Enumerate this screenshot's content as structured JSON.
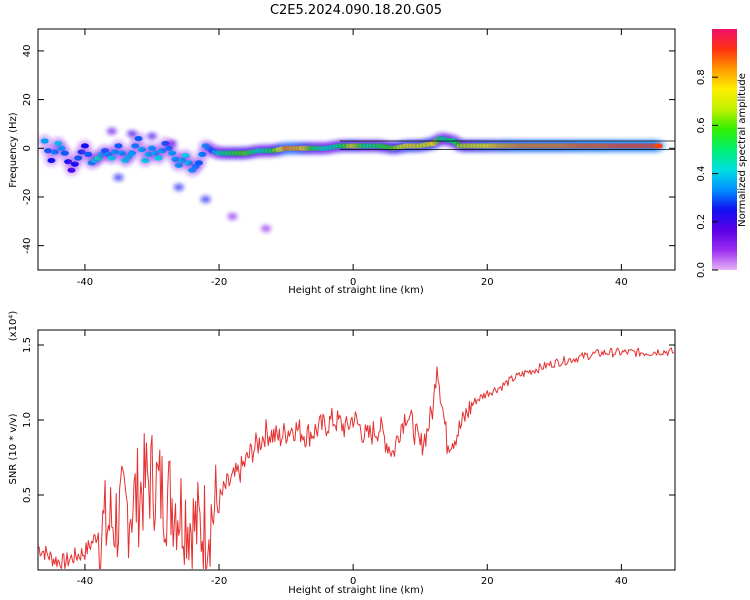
{
  "figure": {
    "title": "C2E5.2024.090.18.20.G05"
  },
  "colors": {
    "snr_line": "#e53030",
    "axis": "#000000",
    "colormap": [
      "#e6b3f5",
      "#9b2cf0",
      "#5a00e8",
      "#1010f0",
      "#0090ff",
      "#00e0e0",
      "#00f070",
      "#30f000",
      "#c0f000",
      "#fff000",
      "#ff9a00",
      "#ff3010",
      "#f0106a"
    ]
  },
  "chart_data": [
    {
      "type": "heatmap",
      "xlabel": "Height of straight line (km)",
      "ylabel": "Frequency (Hz)",
      "xlim": [
        -47,
        48
      ],
      "ylim": [
        -50,
        49
      ],
      "xticks": [
        -40,
        -20,
        0,
        20,
        40
      ],
      "yticks": [
        40,
        20,
        0,
        -20,
        -40
      ],
      "colorbar": {
        "label": "Normalized spectral amplitude",
        "range": [
          0,
          1
        ],
        "ticks": [
          0.0,
          0.2,
          0.4,
          0.6,
          0.8
        ]
      },
      "ridge": [
        {
          "x": -46,
          "y": 3,
          "amp": 0.35
        },
        {
          "x": -45,
          "y": -5,
          "amp": 0.25
        },
        {
          "x": -44,
          "y": 2,
          "amp": 0.4
        },
        {
          "x": -43,
          "y": -2,
          "amp": 0.3
        },
        {
          "x": -42,
          "y": -9,
          "amp": 0.2
        },
        {
          "x": -41,
          "y": -4,
          "amp": 0.3
        },
        {
          "x": -40,
          "y": 1,
          "amp": 0.25
        },
        {
          "x": -39,
          "y": -6,
          "amp": 0.35
        },
        {
          "x": -38,
          "y": -4,
          "amp": 0.45
        },
        {
          "x": -37,
          "y": -1,
          "amp": 0.3
        },
        {
          "x": -36,
          "y": -4,
          "amp": 0.4
        },
        {
          "x": -35,
          "y": 1,
          "amp": 0.3
        },
        {
          "x": -34,
          "y": -5,
          "amp": 0.4
        },
        {
          "x": -33,
          "y": -2,
          "amp": 0.35
        },
        {
          "x": -32,
          "y": 4,
          "amp": 0.3
        },
        {
          "x": -31,
          "y": -5,
          "amp": 0.4
        },
        {
          "x": -30,
          "y": 0,
          "amp": 0.35
        },
        {
          "x": -29,
          "y": -4,
          "amp": 0.4
        },
        {
          "x": -28,
          "y": 2,
          "amp": 0.3
        },
        {
          "x": -27,
          "y": -2,
          "amp": 0.35
        },
        {
          "x": -26,
          "y": -7,
          "amp": 0.35
        },
        {
          "x": -25,
          "y": -3,
          "amp": 0.4
        },
        {
          "x": -24,
          "y": -9,
          "amp": 0.35
        },
        {
          "x": -23,
          "y": -6,
          "amp": 0.3
        },
        {
          "x": -22,
          "y": 1,
          "amp": 0.35
        },
        {
          "x": -21,
          "y": -1,
          "amp": 0.3
        },
        {
          "x": -20,
          "y": -2,
          "amp": 0.45
        },
        {
          "x": -18,
          "y": -2,
          "amp": 0.55
        },
        {
          "x": -16,
          "y": -2,
          "amp": 0.6
        },
        {
          "x": -14,
          "y": -1,
          "amp": 0.45
        },
        {
          "x": -12,
          "y": -1,
          "amp": 0.55
        },
        {
          "x": -10,
          "y": 0,
          "amp": 0.85
        },
        {
          "x": -8,
          "y": 0,
          "amp": 0.8
        },
        {
          "x": -6,
          "y": 0,
          "amp": 0.55
        },
        {
          "x": -4,
          "y": 0,
          "amp": 0.45
        },
        {
          "x": -2,
          "y": 1,
          "amp": 0.5
        },
        {
          "x": 0,
          "y": 1,
          "amp": 0.7
        },
        {
          "x": 2,
          "y": 1,
          "amp": 0.5
        },
        {
          "x": 4,
          "y": 1,
          "amp": 0.55
        },
        {
          "x": 6,
          "y": 0,
          "amp": 0.6
        },
        {
          "x": 8,
          "y": 1,
          "amp": 0.75
        },
        {
          "x": 10,
          "y": 1,
          "amp": 0.7
        },
        {
          "x": 12,
          "y": 2,
          "amp": 0.75
        },
        {
          "x": 13,
          "y": 4,
          "amp": 0.5
        },
        {
          "x": 15,
          "y": 3,
          "amp": 0.5
        },
        {
          "x": 16,
          "y": 1,
          "amp": 0.65
        },
        {
          "x": 18,
          "y": 1,
          "amp": 0.7
        },
        {
          "x": 20,
          "y": 1,
          "amp": 0.75
        },
        {
          "x": 22,
          "y": 1,
          "amp": 0.8
        },
        {
          "x": 25,
          "y": 1,
          "amp": 0.85
        },
        {
          "x": 28,
          "y": 1,
          "amp": 0.85
        },
        {
          "x": 31,
          "y": 1,
          "amp": 0.85
        },
        {
          "x": 34,
          "y": 1,
          "amp": 0.88
        },
        {
          "x": 37,
          "y": 1,
          "amp": 0.88
        },
        {
          "x": 40,
          "y": 1,
          "amp": 0.9
        },
        {
          "x": 43,
          "y": 1,
          "amp": 0.9
        },
        {
          "x": 46,
          "y": 1,
          "amp": 0.9
        }
      ],
      "scatter_blobs": [
        {
          "x": -36,
          "y": 7,
          "amp": 0.15
        },
        {
          "x": -33,
          "y": 6,
          "amp": 0.2
        },
        {
          "x": -30,
          "y": 5,
          "amp": 0.2
        },
        {
          "x": -27,
          "y": 2,
          "amp": 0.15
        },
        {
          "x": -35,
          "y": -12,
          "amp": 0.25
        },
        {
          "x": -26,
          "y": -16,
          "amp": 0.25
        },
        {
          "x": -22,
          "y": -21,
          "amp": 0.25
        },
        {
          "x": -18,
          "y": -28,
          "amp": 0.12
        },
        {
          "x": -13,
          "y": -33,
          "amp": 0.1
        }
      ]
    },
    {
      "type": "line",
      "xlabel": "Height of straight line (km)",
      "ylabel": "SNR (10 * v/v)",
      "yscale_label": "(x10⁴)",
      "xlim": [
        -47,
        48
      ],
      "ylim": [
        0,
        1.6
      ],
      "xticks": [
        -40,
        -20,
        0,
        20,
        40
      ],
      "yticks": [
        0.5,
        1.0,
        1.5
      ],
      "yticklabels": [
        "0.5",
        "1.0",
        "1.5"
      ],
      "series": [
        {
          "x": [
            -47,
            -46,
            -45,
            -44,
            -43,
            -42,
            -41,
            -40,
            -39,
            -38,
            -37,
            -36,
            -35,
            -34,
            -33,
            -32,
            -31,
            -30,
            -29,
            -28,
            -27,
            -26,
            -25,
            -24,
            -23,
            -22,
            -21,
            -20,
            -19,
            -18,
            -17,
            -16,
            -15,
            -14,
            -13,
            -12,
            -11,
            -10,
            -9,
            -8,
            -7,
            -6,
            -5,
            -4,
            -3,
            -2,
            -1,
            0,
            1,
            2,
            3,
            4,
            5,
            6,
            7,
            8,
            9,
            10,
            11,
            12,
            12.5,
            13,
            14,
            15,
            16,
            17,
            18,
            19,
            20,
            22,
            24,
            26,
            28,
            30,
            32,
            34,
            36,
            38,
            40,
            42,
            44,
            46,
            48
          ],
          "values": [
            0.15,
            0.12,
            0.08,
            0.06,
            0.05,
            0.08,
            0.1,
            0.12,
            0.18,
            0.25,
            0.28,
            0.32,
            0.35,
            0.38,
            0.45,
            0.5,
            0.58,
            0.62,
            0.55,
            0.5,
            0.48,
            0.42,
            0.38,
            0.3,
            0.28,
            0.3,
            0.38,
            0.45,
            0.55,
            0.6,
            0.65,
            0.72,
            0.8,
            0.85,
            0.92,
            0.9,
            0.88,
            0.92,
            0.95,
            0.93,
            0.9,
            0.92,
            0.95,
            0.97,
            1.0,
            0.98,
            0.94,
            1.02,
            0.95,
            0.88,
            0.92,
            0.95,
            0.85,
            0.78,
            0.95,
            1.05,
            0.95,
            0.82,
            0.92,
            1.1,
            1.4,
            1.2,
            0.85,
            0.88,
            0.95,
            1.05,
            1.12,
            1.15,
            1.18,
            1.22,
            1.28,
            1.32,
            1.35,
            1.38,
            1.4,
            1.42,
            1.44,
            1.45,
            1.45,
            1.45,
            1.45,
            1.46,
            1.45
          ]
        }
      ]
    }
  ]
}
